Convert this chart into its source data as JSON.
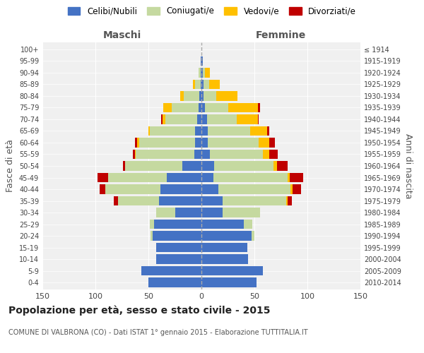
{
  "age_groups": [
    "0-4",
    "5-9",
    "10-14",
    "15-19",
    "20-24",
    "25-29",
    "30-34",
    "35-39",
    "40-44",
    "45-49",
    "50-54",
    "55-59",
    "60-64",
    "65-69",
    "70-74",
    "75-79",
    "80-84",
    "85-89",
    "90-94",
    "95-99",
    "100+"
  ],
  "birth_years": [
    "2010-2014",
    "2005-2009",
    "2000-2004",
    "1995-1999",
    "1990-1994",
    "1985-1989",
    "1980-1984",
    "1975-1979",
    "1970-1974",
    "1965-1969",
    "1960-1964",
    "1955-1959",
    "1950-1954",
    "1945-1949",
    "1940-1944",
    "1935-1939",
    "1930-1934",
    "1925-1929",
    "1920-1924",
    "1915-1919",
    "≤ 1914"
  ],
  "maschi": {
    "celibi": [
      50,
      57,
      43,
      43,
      46,
      45,
      25,
      40,
      39,
      33,
      18,
      7,
      6,
      6,
      4,
      3,
      2,
      1,
      1,
      1,
      0
    ],
    "coniugati": [
      0,
      0,
      0,
      0,
      2,
      4,
      18,
      39,
      52,
      55,
      54,
      55,
      53,
      43,
      30,
      25,
      15,
      5,
      2,
      0,
      0
    ],
    "vedovi": [
      0,
      0,
      0,
      0,
      0,
      0,
      0,
      0,
      0,
      0,
      0,
      1,
      2,
      1,
      3,
      8,
      3,
      2,
      0,
      0,
      0
    ],
    "divorziati": [
      0,
      0,
      0,
      0,
      0,
      0,
      0,
      4,
      5,
      10,
      2,
      2,
      2,
      0,
      1,
      0,
      0,
      0,
      0,
      0,
      0
    ]
  },
  "femmine": {
    "nubili": [
      52,
      58,
      44,
      43,
      47,
      40,
      20,
      20,
      16,
      11,
      12,
      8,
      6,
      6,
      5,
      3,
      2,
      2,
      1,
      1,
      0
    ],
    "coniugate": [
      0,
      0,
      0,
      0,
      3,
      8,
      35,
      60,
      68,
      70,
      56,
      50,
      48,
      40,
      28,
      22,
      12,
      5,
      2,
      0,
      0
    ],
    "vedove": [
      0,
      0,
      0,
      0,
      0,
      0,
      0,
      1,
      2,
      2,
      3,
      6,
      10,
      16,
      20,
      28,
      20,
      10,
      5,
      0,
      0
    ],
    "divorziate": [
      0,
      0,
      0,
      0,
      0,
      0,
      0,
      4,
      8,
      13,
      10,
      8,
      5,
      2,
      1,
      2,
      0,
      0,
      0,
      0,
      0
    ]
  },
  "colors": {
    "celibi": "#4472c4",
    "coniugati": "#c5d9a0",
    "vedovi": "#ffc000",
    "divorziati": "#c00000"
  },
  "title": "Popolazione per età, sesso e stato civile - 2015",
  "subtitle": "COMUNE DI VALBRONA (CO) - Dati ISTAT 1° gennaio 2015 - Elaborazione TUTTITALIA.IT",
  "xlabel_left": "Maschi",
  "xlabel_right": "Femmine",
  "ylabel_left": "Fasce di età",
  "ylabel_right": "Anni di nascita",
  "xlim": 150,
  "legend_labels": [
    "Celibi/Nubili",
    "Coniugati/e",
    "Vedovi/e",
    "Divorziati/e"
  ],
  "bg_color": "#f0f0f0",
  "grid_color": "#cccccc"
}
